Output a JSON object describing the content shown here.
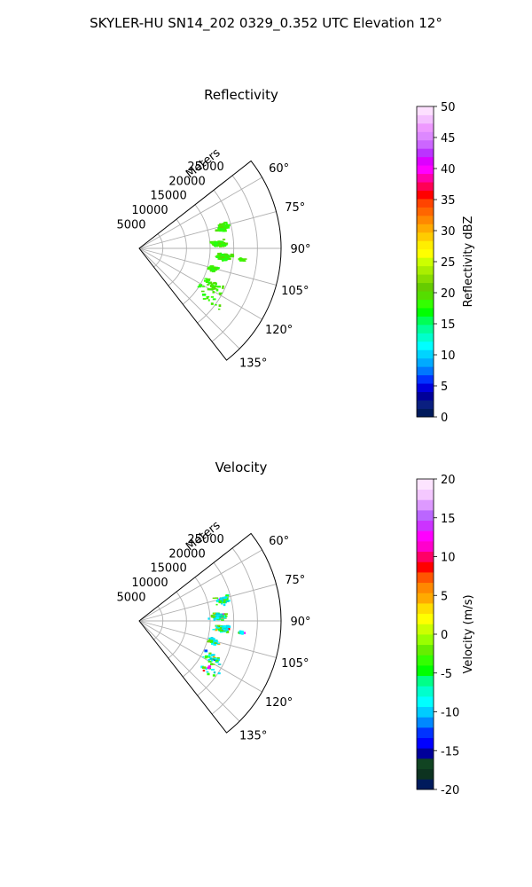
{
  "suptitle": "SKYLER-HU  SN14_202  0329_0.352 UTC Elevation 12°",
  "chart_data": [
    {
      "type": "polar-sector",
      "title": "Reflectivity",
      "range_label": "Meters",
      "range_ticks": [
        5000,
        10000,
        15000,
        20000,
        25000
      ],
      "range_max": 30000,
      "azimuth_range": [
        52,
        142
      ],
      "azimuth_ticks": [
        "60°",
        "75°",
        "90°",
        "105°",
        "120°",
        "135°"
      ],
      "colorbar": {
        "label": "Reflectivity dBZ",
        "min": 0,
        "max": 50,
        "ticks": [
          0,
          5,
          10,
          15,
          20,
          25,
          30,
          35,
          40,
          45,
          50
        ],
        "colors": [
          "#001a5c",
          "#0a1f80",
          "#000099",
          "#0000dd",
          "#0033ff",
          "#0077ff",
          "#00aaff",
          "#00d4ff",
          "#00ffff",
          "#00ffcc",
          "#00ff99",
          "#00ff55",
          "#00ff00",
          "#33ff00",
          "#55dd00",
          "#66cc00",
          "#88dd00",
          "#aaee00",
          "#ccff00",
          "#ffff00",
          "#ffee00",
          "#ffcc00",
          "#ffaa00",
          "#ff8800",
          "#ff6600",
          "#ff4400",
          "#ff0000",
          "#ff0055",
          "#ff00aa",
          "#ff00ff",
          "#dd00ff",
          "#bb33ff",
          "#cc66ff",
          "#dd88ff",
          "#ee99ff",
          "#f4c0ff",
          "#fde0ff"
        ],
        "gate_colors": [
          "#33ff00",
          "#44ee00",
          "#55dd00",
          "#22ff11"
        ]
      }
    },
    {
      "type": "polar-sector",
      "title": "Velocity",
      "range_label": "Meters",
      "range_ticks": [
        5000,
        10000,
        15000,
        20000,
        25000
      ],
      "range_max": 30000,
      "azimuth_range": [
        52,
        142
      ],
      "azimuth_ticks": [
        "60°",
        "75°",
        "90°",
        "105°",
        "120°",
        "135°"
      ],
      "colorbar": {
        "label": "Velocity (m/s)",
        "min": -20,
        "max": 20,
        "ticks": [
          -20,
          -15,
          -10,
          -5,
          0,
          5,
          10,
          15,
          20
        ],
        "colors": [
          "#001a5c",
          "#0d3320",
          "#114422",
          "#000099",
          "#0000ff",
          "#0033ff",
          "#0088ff",
          "#00ccff",
          "#00ffff",
          "#00ffcc",
          "#00ff88",
          "#00ff00",
          "#33ff00",
          "#66ee00",
          "#99ff00",
          "#ccff00",
          "#ffff00",
          "#ffdd00",
          "#ffaa00",
          "#ff8800",
          "#ff5500",
          "#ff0000",
          "#ff0066",
          "#ff00cc",
          "#ff00ff",
          "#cc33ff",
          "#bb66ff",
          "#dd99ff",
          "#f4c8ff",
          "#fde4ff"
        ],
        "gate_colors": [
          "#00ffff",
          "#00e5ff",
          "#00cccc",
          "#33ff00",
          "#66dd00",
          "#0044ff",
          "#ff00ff",
          "#ff0000",
          "#ffaa00"
        ]
      }
    }
  ]
}
